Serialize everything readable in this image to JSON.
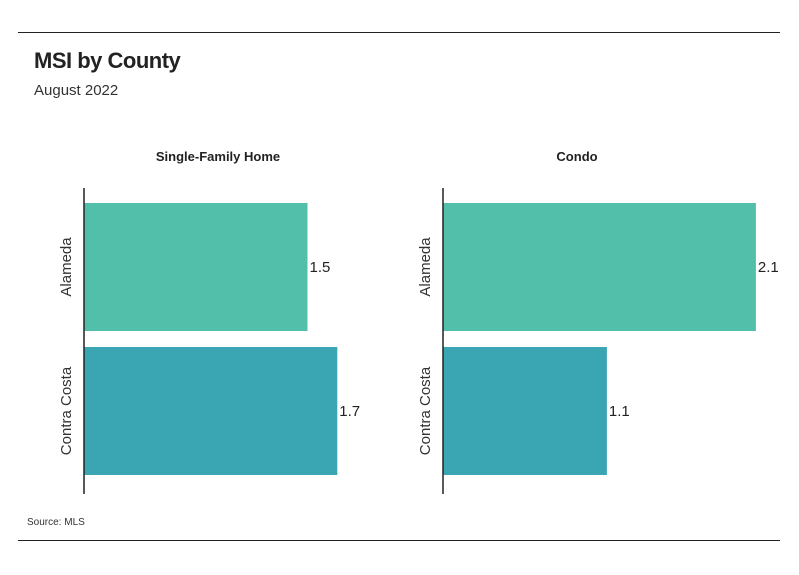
{
  "title": "MSI by County",
  "subtitle": "August 2022",
  "source": "Source:  MLS",
  "colors": {
    "alameda": "#52bfaa",
    "contra_costa": "#3aa6b3",
    "axis": "#222222"
  },
  "chart_data": [
    {
      "type": "bar",
      "orientation": "horizontal",
      "title": "Single-Family Home",
      "categories": [
        "Alameda",
        "Contra Costa"
      ],
      "values": [
        1.5,
        1.7
      ],
      "labels": [
        "1.5",
        "1.7"
      ],
      "xlim": [
        0,
        2.2
      ]
    },
    {
      "type": "bar",
      "orientation": "horizontal",
      "title": "Condo",
      "categories": [
        "Alameda",
        "Contra Costa"
      ],
      "values": [
        2.1,
        1.1
      ],
      "labels": [
        "2.1",
        "1.1"
      ],
      "xlim": [
        0,
        2.2
      ]
    }
  ]
}
